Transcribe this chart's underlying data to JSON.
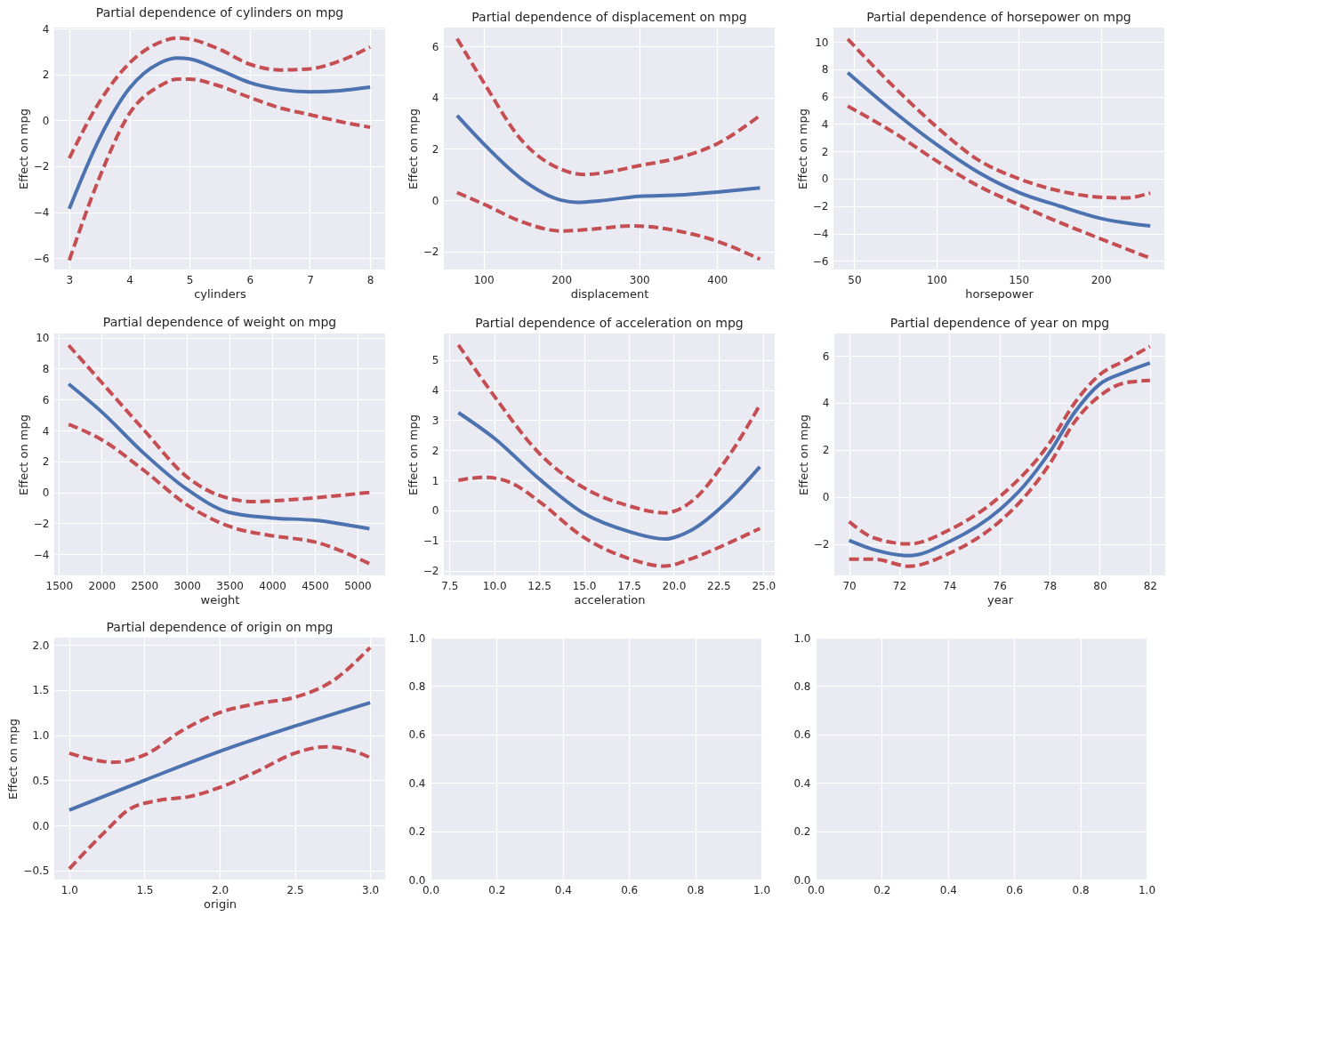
{
  "chart_data": [
    {
      "type": "line",
      "title": "Partial dependence of cylinders on mpg",
      "xlabel": "cylinders",
      "ylabel": "Effect on mpg",
      "grid": true,
      "xlim": [
        2.75,
        8.25
      ],
      "ylim": [
        -6.5,
        4.05
      ],
      "xticks": [
        3,
        4,
        5,
        6,
        7,
        8
      ],
      "yticks": [
        -6,
        -4,
        -2,
        0,
        2,
        4
      ],
      "series": [
        {
          "color": "#4c72b0",
          "line_style": "solid",
          "x": [
            3,
            3.5,
            4,
            4.5,
            4.8,
            5,
            5.5,
            6,
            6.5,
            7,
            7.5,
            8
          ],
          "values": [
            -3.85,
            -0.8,
            1.4,
            2.5,
            2.72,
            2.68,
            2.2,
            1.65,
            1.35,
            1.25,
            1.3,
            1.45
          ]
        },
        {
          "color": "#c44e52",
          "line_style": "dashed",
          "x": [
            3,
            3.5,
            4,
            4.5,
            4.8,
            5,
            5.5,
            6,
            6.5,
            7,
            7.5,
            8
          ],
          "values": [
            -1.65,
            0.8,
            2.5,
            3.4,
            3.6,
            3.55,
            3.1,
            2.45,
            2.2,
            2.25,
            2.6,
            3.2
          ]
        },
        {
          "color": "#c44e52",
          "line_style": "dashed",
          "x": [
            3,
            3.5,
            4,
            4.5,
            4.8,
            5,
            5.5,
            6,
            6.5,
            7,
            7.5,
            8
          ],
          "values": [
            -6.1,
            -2.5,
            0.3,
            1.5,
            1.8,
            1.8,
            1.5,
            1.0,
            0.55,
            0.25,
            -0.05,
            -0.3
          ]
        }
      ]
    },
    {
      "type": "line",
      "title": "Partial dependence of displacement on mpg",
      "xlabel": "displacement",
      "ylabel": "Effect on mpg",
      "grid": true,
      "xlim": [
        49,
        474
      ],
      "ylim": [
        -2.7,
        6.73
      ],
      "xticks": [
        100,
        200,
        300,
        400
      ],
      "yticks": [
        -2,
        0,
        2,
        4,
        6
      ],
      "series": [
        {
          "color": "#4c72b0",
          "line_style": "solid",
          "x": [
            66,
            100,
            150,
            200,
            220,
            250,
            300,
            350,
            400,
            455
          ],
          "values": [
            3.3,
            2.2,
            0.8,
            0.0,
            -0.08,
            -0.02,
            0.15,
            0.2,
            0.32,
            0.48
          ]
        },
        {
          "color": "#c44e52",
          "line_style": "dashed",
          "x": [
            66,
            100,
            150,
            200,
            230,
            260,
            300,
            350,
            400,
            455
          ],
          "values": [
            6.3,
            4.6,
            2.3,
            1.2,
            1.0,
            1.1,
            1.35,
            1.65,
            2.2,
            3.3
          ]
        },
        {
          "color": "#c44e52",
          "line_style": "dashed",
          "x": [
            66,
            100,
            150,
            200,
            250,
            290,
            350,
            400,
            455
          ],
          "values": [
            0.3,
            -0.15,
            -0.85,
            -1.2,
            -1.1,
            -1.0,
            -1.2,
            -1.6,
            -2.3
          ]
        }
      ]
    },
    {
      "type": "line",
      "title": "Partial dependence of horsepower on mpg",
      "xlabel": "horsepower",
      "ylabel": "Effect on mpg",
      "grid": true,
      "xlim": [
        37.3,
        238.6
      ],
      "ylim": [
        -6.63,
        11.04
      ],
      "xticks": [
        50,
        100,
        150,
        200
      ],
      "yticks": [
        -6,
        -4,
        -2,
        0,
        2,
        4,
        6,
        8,
        10
      ],
      "series": [
        {
          "color": "#4c72b0",
          "line_style": "solid",
          "x": [
            46,
            75,
            100,
            125,
            150,
            175,
            200,
            230
          ],
          "values": [
            7.75,
            4.8,
            2.5,
            0.5,
            -1.0,
            -2.0,
            -2.9,
            -3.45
          ]
        },
        {
          "color": "#c44e52",
          "line_style": "dashed",
          "x": [
            46,
            75,
            100,
            125,
            150,
            175,
            200,
            215,
            230
          ],
          "values": [
            10.2,
            6.6,
            3.8,
            1.4,
            0.0,
            -0.9,
            -1.35,
            -1.4,
            -1.05
          ]
        },
        {
          "color": "#c44e52",
          "line_style": "dashed",
          "x": [
            46,
            75,
            100,
            125,
            150,
            175,
            200,
            230
          ],
          "values": [
            5.3,
            3.3,
            1.3,
            -0.5,
            -1.9,
            -3.2,
            -4.4,
            -5.8
          ]
        }
      ]
    },
    {
      "type": "line",
      "title": "Partial dependence of weight on mpg",
      "xlabel": "weight",
      "ylabel": "Effect on mpg",
      "grid": true,
      "xlim": [
        1444,
        5324
      ],
      "ylim": [
        -5.36,
        10.26
      ],
      "xticks": [
        1500,
        2000,
        2500,
        3000,
        3500,
        4000,
        4500,
        5000
      ],
      "yticks": [
        -4,
        -2,
        0,
        2,
        4,
        6,
        8,
        10
      ],
      "series": [
        {
          "color": "#4c72b0",
          "line_style": "solid",
          "x": [
            1613,
            2000,
            2500,
            3000,
            3500,
            4000,
            4500,
            5140
          ],
          "values": [
            7.0,
            5.2,
            2.5,
            0.2,
            -1.3,
            -1.65,
            -1.8,
            -2.35
          ]
        },
        {
          "color": "#c44e52",
          "line_style": "dashed",
          "x": [
            1613,
            2000,
            2500,
            3000,
            3500,
            3800,
            4000,
            4500,
            5140
          ],
          "values": [
            9.5,
            7.1,
            4.0,
            1.0,
            -0.4,
            -0.6,
            -0.55,
            -0.35,
            0.0
          ]
        },
        {
          "color": "#c44e52",
          "line_style": "dashed",
          "x": [
            1613,
            2000,
            2500,
            3000,
            3500,
            4000,
            4500,
            5140
          ],
          "values": [
            4.4,
            3.4,
            1.4,
            -0.8,
            -2.2,
            -2.8,
            -3.2,
            -4.6
          ]
        }
      ]
    },
    {
      "type": "line",
      "title": "Partial dependence of acceleration on mpg",
      "xlabel": "acceleration",
      "ylabel": "Effect on mpg",
      "grid": true,
      "xlim": [
        7.19,
        25.63
      ],
      "ylim": [
        -2.16,
        5.88
      ],
      "xticks": [
        {
          "value": 7.5,
          "label": "7.5"
        },
        {
          "value": 10,
          "label": "10.0"
        },
        {
          "value": 12.5,
          "label": "12.5"
        },
        {
          "value": 15,
          "label": "15.0"
        },
        {
          "value": 17.5,
          "label": "17.5"
        },
        {
          "value": 20,
          "label": "20.0"
        },
        {
          "value": 22.5,
          "label": "22.5"
        },
        {
          "value": 25,
          "label": "25.0"
        }
      ],
      "yticks": [
        -2,
        -1,
        0,
        1,
        2,
        3,
        4,
        5
      ],
      "series": [
        {
          "color": "#4c72b0",
          "line_style": "solid",
          "x": [
            8,
            10,
            12.5,
            15,
            17.5,
            19.5,
            21,
            23,
            24.8
          ],
          "values": [
            3.25,
            2.4,
            1.05,
            -0.1,
            -0.7,
            -0.95,
            -0.65,
            0.3,
            1.45
          ]
        },
        {
          "color": "#c44e52",
          "line_style": "dashed",
          "x": [
            8,
            10,
            12.5,
            15,
            17.5,
            19.5,
            21,
            23,
            24.8
          ],
          "values": [
            5.5,
            3.8,
            1.9,
            0.75,
            0.15,
            -0.08,
            0.3,
            1.75,
            3.5
          ]
        },
        {
          "color": "#c44e52",
          "line_style": "dashed",
          "x": [
            8,
            9.5,
            11,
            12.5,
            15,
            17.5,
            19.5,
            21,
            23,
            24.8
          ],
          "values": [
            1.0,
            1.1,
            0.9,
            0.3,
            -0.9,
            -1.6,
            -1.85,
            -1.6,
            -1.1,
            -0.6
          ]
        }
      ]
    },
    {
      "type": "line",
      "title": "Partial dependence of year on mpg",
      "xlabel": "year",
      "ylabel": "Effect on mpg",
      "grid": true,
      "xlim": [
        69.41,
        82.61
      ],
      "ylim": [
        -3.34,
        6.95
      ],
      "xticks": [
        70,
        72,
        74,
        76,
        78,
        80,
        82
      ],
      "yticks": [
        -2,
        0,
        2,
        4,
        6
      ],
      "series": [
        {
          "color": "#4c72b0",
          "line_style": "solid",
          "x": [
            70,
            71,
            72.4,
            74,
            76,
            77,
            78,
            79,
            80,
            81,
            82
          ],
          "values": [
            -1.85,
            -2.25,
            -2.5,
            -1.9,
            -0.55,
            0.5,
            1.9,
            3.6,
            4.8,
            5.3,
            5.7
          ]
        },
        {
          "color": "#c44e52",
          "line_style": "dashed",
          "x": [
            70,
            71,
            72.4,
            74,
            76,
            78,
            79,
            80,
            81,
            82
          ],
          "values": [
            -1.05,
            -1.75,
            -2.0,
            -1.4,
            0.0,
            2.3,
            4.0,
            5.2,
            5.8,
            6.4
          ]
        },
        {
          "color": "#c44e52",
          "line_style": "dashed",
          "x": [
            70,
            71,
            72.4,
            74,
            76,
            77,
            78,
            79,
            80,
            81,
            82
          ],
          "values": [
            -2.65,
            -2.65,
            -2.95,
            -2.4,
            -1.05,
            0.0,
            1.4,
            3.2,
            4.3,
            4.85,
            4.95
          ]
        }
      ]
    },
    {
      "type": "line",
      "title": "Partial dependence of origin on mpg",
      "xlabel": "origin",
      "ylabel": "Effect on mpg",
      "grid": true,
      "xlim": [
        0.9,
        3.1
      ],
      "ylim": [
        -0.6,
        2.08
      ],
      "xticks": [
        {
          "value": 1,
          "label": "1.0"
        },
        {
          "value": 1.5,
          "label": "1.5"
        },
        {
          "value": 2,
          "label": "2.0"
        },
        {
          "value": 2.5,
          "label": "2.5"
        },
        {
          "value": 3,
          "label": "3.0"
        }
      ],
      "yticks": [
        {
          "value": -0.5,
          "label": "−0.5"
        },
        {
          "value": 0,
          "label": "0.0"
        },
        {
          "value": 0.5,
          "label": "0.5"
        },
        {
          "value": 1,
          "label": "1.0"
        },
        {
          "value": 1.5,
          "label": "1.5"
        },
        {
          "value": 2,
          "label": "2.0"
        }
      ],
      "series": [
        {
          "color": "#4c72b0",
          "line_style": "solid",
          "x": [
            1,
            1.5,
            2,
            2.5,
            3
          ],
          "values": [
            0.17,
            0.5,
            0.82,
            1.1,
            1.36
          ]
        },
        {
          "color": "#c44e52",
          "line_style": "dashed",
          "x": [
            1,
            1.3,
            1.5,
            1.75,
            2,
            2.25,
            2.5,
            2.75,
            3
          ],
          "values": [
            0.8,
            0.7,
            0.78,
            1.05,
            1.25,
            1.35,
            1.42,
            1.6,
            1.97
          ]
        },
        {
          "color": "#c44e52",
          "line_style": "dashed",
          "x": [
            1,
            1.25,
            1.4,
            1.6,
            1.8,
            2,
            2.25,
            2.5,
            2.7,
            2.9,
            3
          ],
          "values": [
            -0.48,
            -0.05,
            0.18,
            0.28,
            0.32,
            0.42,
            0.6,
            0.8,
            0.87,
            0.82,
            0.75
          ]
        }
      ]
    },
    {
      "type": "line",
      "grid": true,
      "xlim": [
        0,
        1
      ],
      "ylim": [
        0,
        1
      ],
      "xticks": [
        {
          "value": 0,
          "label": "0.0"
        },
        {
          "value": 0.2,
          "label": "0.2"
        },
        {
          "value": 0.4,
          "label": "0.4"
        },
        {
          "value": 0.6,
          "label": "0.6"
        },
        {
          "value": 0.8,
          "label": "0.8"
        },
        {
          "value": 1,
          "label": "1.0"
        }
      ],
      "yticks": [
        {
          "value": 0,
          "label": "0.0"
        },
        {
          "value": 0.2,
          "label": "0.2"
        },
        {
          "value": 0.4,
          "label": "0.4"
        },
        {
          "value": 0.6,
          "label": "0.6"
        },
        {
          "value": 0.8,
          "label": "0.8"
        },
        {
          "value": 1,
          "label": "1.0"
        }
      ]
    },
    {
      "type": "line",
      "grid": true,
      "xlim": [
        0,
        1
      ],
      "ylim": [
        0,
        1
      ],
      "xticks": [
        {
          "value": 0,
          "label": "0.0"
        },
        {
          "value": 0.2,
          "label": "0.2"
        },
        {
          "value": 0.4,
          "label": "0.4"
        },
        {
          "value": 0.6,
          "label": "0.6"
        },
        {
          "value": 0.8,
          "label": "0.8"
        },
        {
          "value": 1,
          "label": "1.0"
        }
      ],
      "yticks": [
        {
          "value": 0,
          "label": "0.0"
        },
        {
          "value": 0.2,
          "label": "0.2"
        },
        {
          "value": 0.4,
          "label": "0.4"
        },
        {
          "value": 0.6,
          "label": "0.6"
        },
        {
          "value": 0.8,
          "label": "0.8"
        },
        {
          "value": 1,
          "label": "1.0"
        }
      ]
    }
  ]
}
